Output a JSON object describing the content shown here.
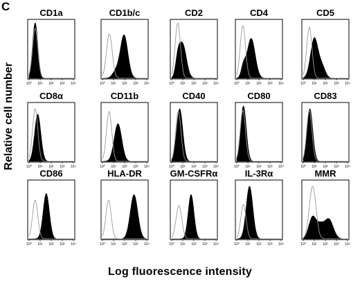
{
  "figure": {
    "panel_letter": "C",
    "ylabel": "Relative cell number",
    "xlabel": "Log fluorescence intensity"
  },
  "chart_data": {
    "type": "histogram-grid",
    "xscale": "log",
    "xlim_decades": [
      0,
      4
    ],
    "x_tick_labels": [
      "10⁰",
      "10¹",
      "10²",
      "10³",
      "10⁴"
    ],
    "series_legend": [
      "stained (filled black)",
      "isotype control (open grey line)"
    ],
    "panels": [
      {
        "label": "CD1a",
        "filled": {
          "peaks": [
            [
              0.55,
              0.24,
              1.0
            ]
          ]
        },
        "control": {
          "peaks": [
            [
              0.55,
              0.24,
              0.9
            ]
          ]
        }
      },
      {
        "label": "CD1b/c",
        "filled": {
          "peaks": [
            [
              1.95,
              0.34,
              0.78
            ],
            [
              1.2,
              0.3,
              0.12
            ]
          ]
        },
        "control": {
          "peaks": [
            [
              0.62,
              0.26,
              0.8
            ]
          ]
        }
      },
      {
        "label": "CD2",
        "filled": {
          "peaks": [
            [
              0.98,
              0.34,
              0.62
            ],
            [
              0.55,
              0.2,
              0.25
            ]
          ]
        },
        "control": {
          "peaks": [
            [
              0.55,
              0.24,
              1.0
            ]
          ]
        }
      },
      {
        "label": "CD4",
        "filled": {
          "peaks": [
            [
              1.3,
              0.36,
              0.72
            ],
            [
              0.6,
              0.2,
              0.2
            ]
          ]
        },
        "control": {
          "peaks": [
            [
              0.55,
              0.24,
              0.95
            ]
          ]
        }
      },
      {
        "label": "CD5",
        "filled": {
          "peaks": [
            [
              1.0,
              0.34,
              0.72
            ],
            [
              1.7,
              0.3,
              0.2
            ]
          ]
        },
        "control": {
          "peaks": [
            [
              0.55,
              0.24,
              0.92
            ]
          ]
        }
      },
      {
        "label": "CD8α",
        "filled": {
          "peaks": [
            [
              0.78,
              0.28,
              0.85
            ]
          ]
        },
        "control": {
          "peaks": [
            [
              0.55,
              0.24,
              0.95
            ]
          ]
        }
      },
      {
        "label": "CD11b",
        "filled": {
          "peaks": [
            [
              1.4,
              0.34,
              0.68
            ]
          ]
        },
        "control": {
          "peaks": [
            [
              0.6,
              0.24,
              0.9
            ]
          ]
        }
      },
      {
        "label": "CD40",
        "filled": {
          "peaks": [
            [
              0.72,
              0.28,
              0.95
            ]
          ]
        },
        "control": {
          "peaks": [
            [
              0.6,
              0.24,
              0.9
            ]
          ]
        }
      },
      {
        "label": "CD80",
        "filled": {
          "peaks": [
            [
              0.6,
              0.26,
              1.0
            ]
          ]
        },
        "control": {
          "peaks": [
            [
              0.55,
              0.24,
              0.92
            ]
          ]
        }
      },
      {
        "label": "CD83",
        "filled": {
          "peaks": [
            [
              0.6,
              0.26,
              0.95
            ]
          ]
        },
        "control": {
          "peaks": [
            [
              0.55,
              0.24,
              0.92
            ]
          ]
        }
      },
      {
        "label": "CD86",
        "filled": {
          "peaks": [
            [
              1.55,
              0.28,
              0.82
            ]
          ]
        },
        "control": {
          "peaks": [
            [
              0.55,
              0.24,
              0.7
            ]
          ]
        }
      },
      {
        "label": "HLA-DR",
        "filled": {
          "peaks": [
            [
              2.85,
              0.34,
              0.8
            ]
          ]
        },
        "control": {
          "peaks": [
            [
              0.55,
              0.24,
              0.7
            ]
          ]
        }
      },
      {
        "label": "GM-CSFRα",
        "filled": {
          "peaks": [
            [
              1.75,
              0.26,
              0.8
            ]
          ]
        },
        "control": {
          "peaks": [
            [
              0.65,
              0.26,
              0.6
            ]
          ]
        }
      },
      {
        "label": "IL-3Rα",
        "filled": {
          "peaks": [
            [
              1.15,
              0.3,
              0.95
            ]
          ]
        },
        "control": {
          "peaks": [
            [
              0.6,
              0.24,
              0.62
            ]
          ]
        }
      },
      {
        "label": "MMR",
        "filled": {
          "peaks": [
            [
              0.85,
              0.34,
              0.4
            ],
            [
              2.3,
              0.4,
              0.36
            ],
            [
              1.55,
              0.3,
              0.2
            ]
          ]
        },
        "control": {
          "peaks": [
            [
              0.85,
              0.3,
              0.95
            ]
          ]
        }
      }
    ]
  }
}
